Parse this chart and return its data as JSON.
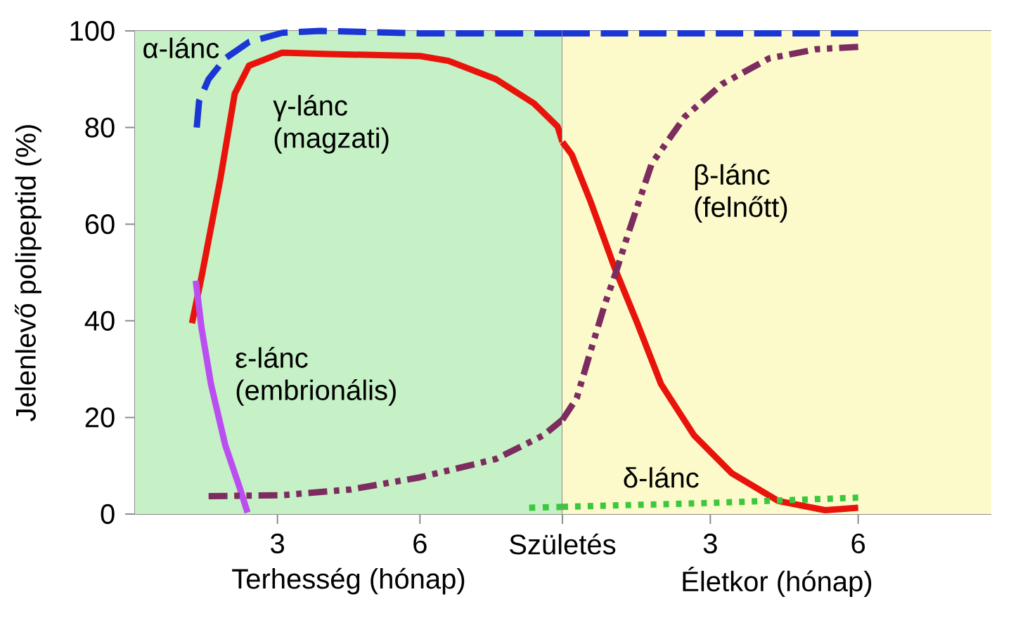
{
  "chart_data": [
    {
      "type": "line",
      "ylabel": "Jelenlevő polipeptid (%)",
      "xlabel": "Terhesség (hónap)",
      "xlim": [
        0,
        9
      ],
      "xticks": [
        3,
        6,
        {
          "value": 9,
          "label": "Születés"
        }
      ],
      "ylim": [
        0,
        100
      ],
      "yticks": [
        0,
        20,
        40,
        60,
        80,
        100
      ],
      "bands": [
        {
          "axis": "x",
          "from": 0,
          "to": 9,
          "color": "#c6f0c6"
        }
      ],
      "series": [
        {
          "name": "α-lánc",
          "color": "#1a36d4",
          "line_style": "dashed",
          "x": [
            1.3,
            1.35,
            1.55,
            1.9,
            2.4,
            3.1,
            3.9,
            6,
            9
          ],
          "values": [
            80,
            85.5,
            90,
            94.3,
            97.7,
            99.6,
            100,
            99.5,
            99.5
          ]
        },
        {
          "name": "γ-lánc (magzati)",
          "color": "#e8140c",
          "line_style": "solid",
          "x": [
            1.2,
            1.4,
            1.8,
            2.1,
            2.4,
            3.1,
            4.1,
            6,
            6.6,
            7.6,
            8.4,
            8.9,
            9
          ],
          "values": [
            39.5,
            49,
            69.5,
            87,
            92.8,
            95.5,
            95.2,
            94.8,
            93.8,
            90,
            85,
            80.2,
            77
          ]
        },
        {
          "name": "ε-lánc (embrionális)",
          "color": "#bb4ef0",
          "line_style": "solid",
          "x": [
            1.28,
            1.4,
            1.6,
            1.9,
            2.2,
            2.37
          ],
          "values": [
            48.3,
            38.6,
            26.9,
            14.3,
            5.6,
            0.3
          ]
        },
        {
          "color": "#7c2c5e",
          "line_style": "dashdotdotted",
          "x": [
            1.55,
            3.1,
            4.55,
            6,
            7.6,
            8.6,
            9
          ],
          "values": [
            3.7,
            3.9,
            5.1,
            7.6,
            11.4,
            16.3,
            19.5
          ]
        },
        {
          "color": "#3cc83c",
          "line_style": "dotted",
          "x": [
            8.3,
            9
          ],
          "values": [
            1.3,
            1.5
          ]
        }
      ]
    },
    {
      "type": "line",
      "xlabel": "Életkor (hónap)",
      "xlim": [
        0,
        8.7
      ],
      "xticks": [
        3,
        6
      ],
      "ylim": [
        0,
        100
      ],
      "tick_labels": "x",
      "bands": [
        {
          "axis": "x",
          "from": 0,
          "to": 8.7,
          "color": "#fcfacb"
        }
      ],
      "series": [
        {
          "color": "#1a36d4",
          "line_style": "dashed",
          "x": [
            0,
            6
          ],
          "values": [
            99.5,
            99.5
          ]
        },
        {
          "color": "#e8140c",
          "line_style": "solid",
          "x": [
            0,
            0.19,
            0.57,
            1.05,
            1.52,
            2.0,
            2.67,
            3.43,
            4.38,
            5.33,
            6
          ],
          "values": [
            77,
            74.4,
            64.7,
            51.2,
            39.5,
            26.9,
            16.3,
            8.5,
            2.7,
            0.8,
            1.3
          ]
        },
        {
          "name": "β-lánc (felnőtt)",
          "color": "#7c2c5e",
          "line_style": "dashdotdotted",
          "x": [
            0,
            0.29,
            0.57,
            0.86,
            1.09,
            1.33,
            1.81,
            2.48,
            3.24,
            4.19,
            5.14,
            6
          ],
          "values": [
            19.5,
            24,
            33.7,
            43.4,
            50.2,
            57.9,
            72.5,
            82.2,
            89,
            94.3,
            96.2,
            96.7
          ]
        },
        {
          "name": "δ-lánc",
          "color": "#3cc83c",
          "line_style": "dotted",
          "x": [
            0,
            3,
            6
          ],
          "values": [
            1.5,
            2.3,
            3.4
          ]
        }
      ]
    }
  ]
}
